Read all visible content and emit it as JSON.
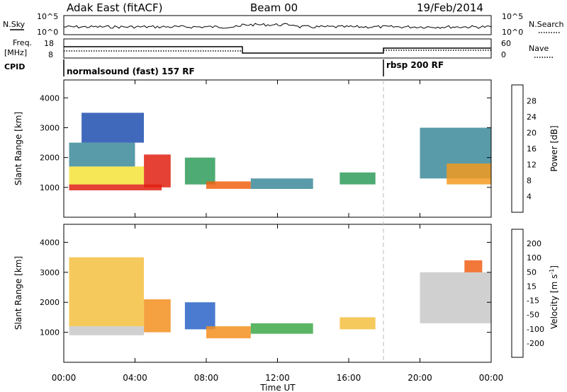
{
  "header": {
    "station": "Adak East (fitACF)",
    "beam": "Beam 00",
    "date": "19/Feb/2014"
  },
  "panels": {
    "nsky": {
      "label": "N.Sky",
      "ticks": [
        "10^5",
        "10^0"
      ]
    },
    "nsearch": {
      "label": "N.Search",
      "ticks": [
        "10^5",
        "10^0"
      ]
    },
    "freq": {
      "label_line1": "Freq.",
      "label_line2": "[MHz]",
      "ticks": [
        "18",
        "8"
      ]
    },
    "nave": {
      "label": "Nave",
      "ticks": [
        "60",
        "0"
      ]
    },
    "cpid": {
      "label": "CPID",
      "mode1": "normalsound (fast) 157 RF",
      "mode2": "rbsp 200 RF"
    }
  },
  "chart_data": [
    {
      "type": "heatmap",
      "name": "power",
      "ylabel": "Slant Range [km]",
      "xlabel": "Time UT",
      "x_ticks": [
        "00:00",
        "04:00",
        "08:00",
        "12:00",
        "16:00",
        "20:00",
        "00:00"
      ],
      "xlim_hours": [
        0,
        24
      ],
      "y_ticks": [
        1000,
        2000,
        3000,
        4000
      ],
      "ylim": [
        0,
        4600
      ],
      "colorbar": {
        "label": "Power [dB]",
        "ticks": [
          4,
          8,
          12,
          16,
          20,
          24,
          28
        ],
        "colors": [
          "#1a1aff",
          "#1f4fb0",
          "#3c8a9a",
          "#2f9c5a",
          "#6bbf4a",
          "#f5e33a",
          "#f29a20",
          "#f06010",
          "#e02010",
          "#ff0000"
        ]
      },
      "regions": [
        {
          "t0": 0.3,
          "t1": 5.5,
          "r0": 900,
          "r1": 1100,
          "value": 28
        },
        {
          "t0": 0.3,
          "t1": 4.5,
          "r0": 1100,
          "r1": 1700,
          "value": 16
        },
        {
          "t0": 0.3,
          "t1": 4.0,
          "r0": 1700,
          "r1": 2500,
          "value": 8
        },
        {
          "t0": 1.0,
          "t1": 4.5,
          "r0": 2500,
          "r1": 3500,
          "value": 6
        },
        {
          "t0": 4.5,
          "t1": 6.0,
          "r0": 1000,
          "r1": 2100,
          "value": 28
        },
        {
          "t0": 6.8,
          "t1": 8.5,
          "r0": 1100,
          "r1": 2000,
          "value": 12
        },
        {
          "t0": 8.0,
          "t1": 10.5,
          "r0": 950,
          "r1": 1200,
          "value": 24
        },
        {
          "t0": 10.5,
          "t1": 14.0,
          "r0": 950,
          "r1": 1300,
          "value": 8
        },
        {
          "t0": 15.5,
          "t1": 17.5,
          "r0": 1100,
          "r1": 1500,
          "value": 10
        },
        {
          "t0": 20.0,
          "t1": 24.0,
          "r0": 1300,
          "r1": 3000,
          "value": 8
        },
        {
          "t0": 21.5,
          "t1": 24.0,
          "r0": 1100,
          "r1": 1800,
          "value": 20
        }
      ]
    },
    {
      "type": "heatmap",
      "name": "velocity",
      "ylabel": "Slant Range [km]",
      "xlabel": "Time UT",
      "x_ticks": [
        "00:00",
        "04:00",
        "08:00",
        "12:00",
        "16:00",
        "20:00",
        "00:00"
      ],
      "xlim_hours": [
        0,
        24
      ],
      "y_ticks": [
        1000,
        2000,
        3000,
        4000
      ],
      "ylim": [
        0,
        4600
      ],
      "colorbar": {
        "label_main": "Velocity [m s",
        "label_sup": "-1",
        "label_end": "]",
        "ticks": [
          200,
          100,
          50,
          15,
          -15,
          -50,
          -100,
          -200
        ],
        "colors": [
          "#1f3fc0",
          "#2a64c8",
          "#3da84a",
          "#7fcf5a",
          "#c8c8c8",
          "#f5c040",
          "#f39020",
          "#f06018",
          "#e02010"
        ]
      },
      "regions": [
        {
          "t0": 0.3,
          "t1": 4.5,
          "r0": 900,
          "r1": 1200,
          "value": 0
        },
        {
          "t0": 0.3,
          "t1": 4.5,
          "r0": 1200,
          "r1": 3500,
          "value": -30
        },
        {
          "t0": 4.5,
          "t1": 6.0,
          "r0": 1000,
          "r1": 2100,
          "value": -60
        },
        {
          "t0": 6.8,
          "t1": 8.5,
          "r0": 1100,
          "r1": 2000,
          "value": 120
        },
        {
          "t0": 8.0,
          "t1": 10.5,
          "r0": 800,
          "r1": 1200,
          "value": -90
        },
        {
          "t0": 10.5,
          "t1": 14.0,
          "r0": 950,
          "r1": 1300,
          "value": 50
        },
        {
          "t0": 15.5,
          "t1": 17.5,
          "r0": 1100,
          "r1": 1500,
          "value": -40
        },
        {
          "t0": 20.0,
          "t1": 24.0,
          "r0": 1300,
          "r1": 3000,
          "value": 0
        },
        {
          "t0": 22.5,
          "t1": 23.5,
          "r0": 3000,
          "r1": 3400,
          "value": -200
        }
      ]
    }
  ]
}
